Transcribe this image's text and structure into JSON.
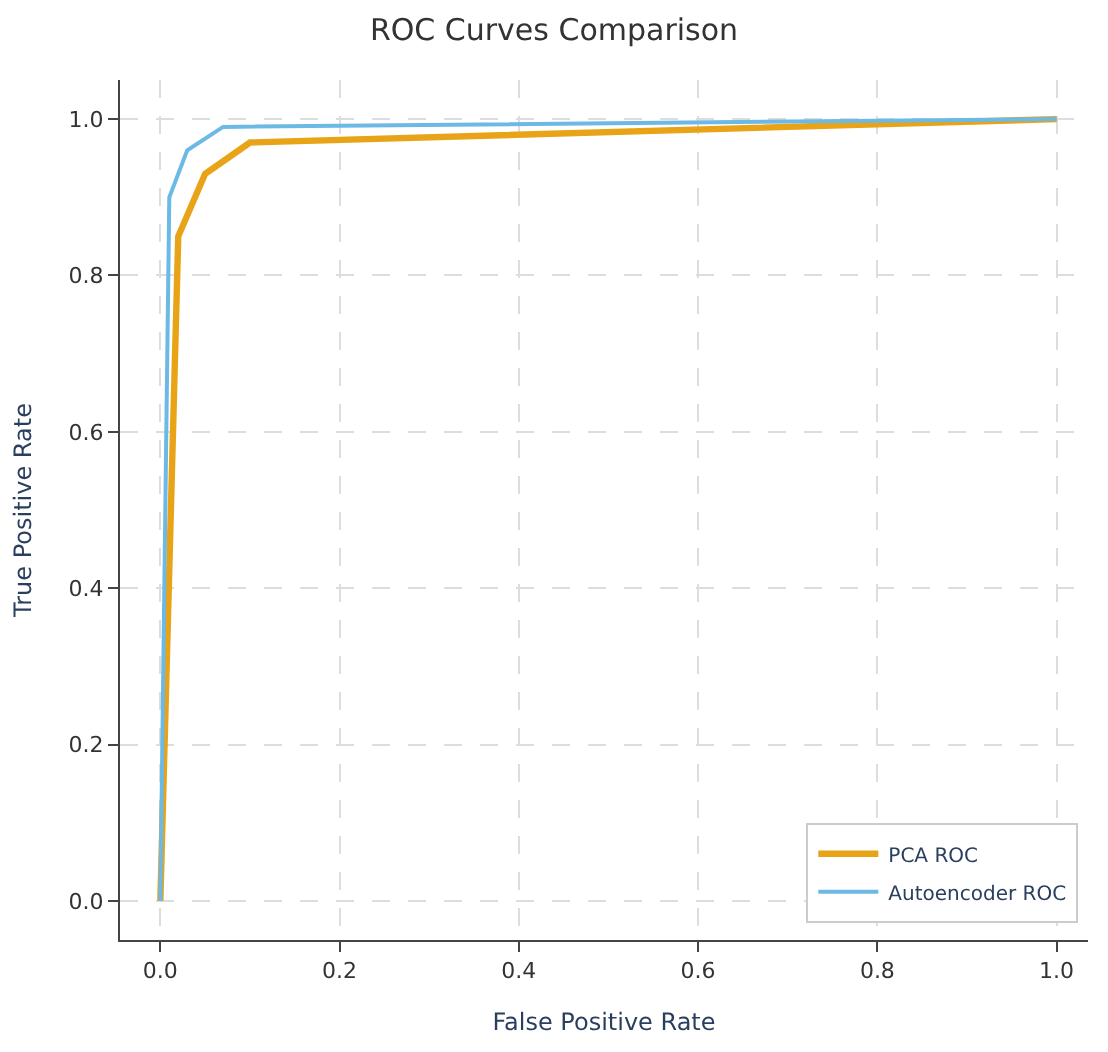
{
  "chart_data": {
    "type": "line",
    "title": "ROC Curves Comparison",
    "xlabel": "False Positive Rate",
    "ylabel": "True Positive Rate",
    "xlim": [
      -0.045,
      1.035
    ],
    "ylim": [
      -0.05,
      1.05
    ],
    "xticks": [
      {
        "value": 0,
        "label": "0.0"
      },
      0.2,
      0.4,
      0.6,
      0.8,
      {
        "value": 1,
        "label": "1.0"
      }
    ],
    "yticks": [
      {
        "value": 0,
        "label": "0.0"
      },
      0.2,
      0.4,
      0.6,
      0.8,
      {
        "value": 1,
        "label": "1.0"
      }
    ],
    "grid": true,
    "legend": "bottom right",
    "marker": "none",
    "line_style": "solid",
    "series": [
      {
        "name": "PCA ROC",
        "color": "#e8a317",
        "x": [
          0,
          0.02,
          0.05,
          0.1,
          1
        ],
        "values": [
          0,
          0.85,
          0.93,
          0.97,
          1
        ]
      },
      {
        "name": "Autoencoder ROC",
        "color": "#6bb9e4",
        "x": [
          0,
          0.01,
          0.03,
          0.07,
          1
        ],
        "values": [
          0,
          0.9,
          0.96,
          0.99,
          1
        ]
      }
    ]
  }
}
